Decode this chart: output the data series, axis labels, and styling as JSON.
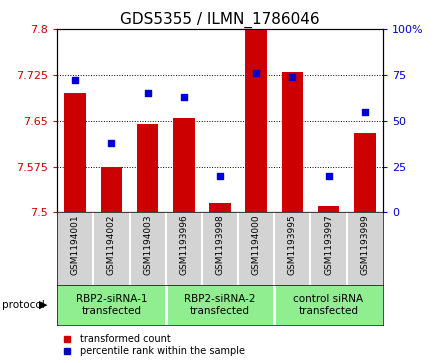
{
  "title": "GDS5355 / ILMN_1786046",
  "samples": [
    "GSM1194001",
    "GSM1194002",
    "GSM1194003",
    "GSM1193996",
    "GSM1193998",
    "GSM1194000",
    "GSM1193995",
    "GSM1193997",
    "GSM1193999"
  ],
  "transformed_counts": [
    7.695,
    7.575,
    7.645,
    7.655,
    7.515,
    7.8,
    7.73,
    7.51,
    7.63
  ],
  "percentile_ranks": [
    72,
    38,
    65,
    63,
    20,
    76,
    74,
    20,
    55
  ],
  "groups": [
    {
      "label": "RBP2-siRNA-1\ntransfected",
      "indices": [
        0,
        1,
        2
      ]
    },
    {
      "label": "RBP2-siRNA-2\ntransfected",
      "indices": [
        3,
        4,
        5
      ]
    },
    {
      "label": "control siRNA\ntransfected",
      "indices": [
        6,
        7,
        8
      ]
    }
  ],
  "ylim_left": [
    7.5,
    7.8
  ],
  "ylim_right": [
    0,
    100
  ],
  "yticks_left": [
    7.5,
    7.575,
    7.65,
    7.725,
    7.8
  ],
  "yticks_right": [
    0,
    25,
    50,
    75,
    100
  ],
  "bar_color": "#CC0000",
  "dot_color": "#0000CC",
  "bar_width": 0.6,
  "plot_bg_color": "#FFFFFF",
  "label_bg_color": "#D3D3D3",
  "group_bg_color": "#90EE90",
  "title_fontsize": 11,
  "tick_fontsize": 8,
  "sample_fontsize": 6.5,
  "group_fontsize": 7.5,
  "legend_fontsize": 7
}
